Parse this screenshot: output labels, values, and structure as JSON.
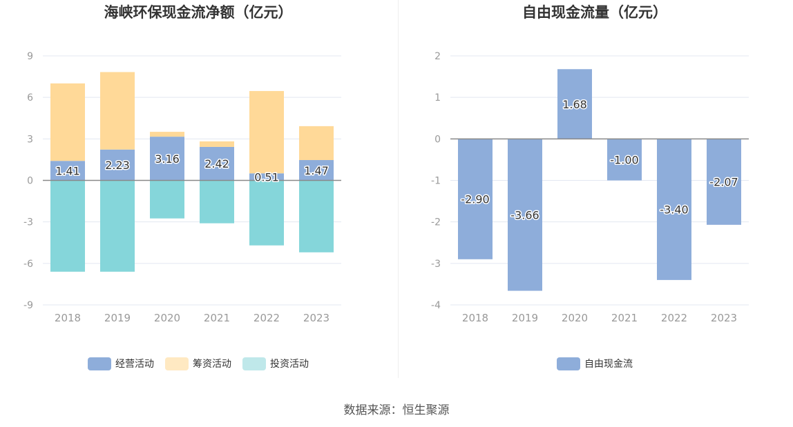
{
  "colors": {
    "operating": "#8eadda",
    "financing": "#ffd998",
    "investing": "#85d6da",
    "free_cf": "#8eadda",
    "grid": "#e3e7f1",
    "zero_line": "#888888",
    "tick_text": "#999999",
    "data_label": "#333333"
  },
  "source": "数据来源：恒生聚源",
  "chart_data": [
    {
      "type": "bar",
      "stacked": true,
      "title": "海峡环保现金流净额（亿元）",
      "categories": [
        "2018",
        "2019",
        "2020",
        "2021",
        "2022",
        "2023"
      ],
      "ylim": [
        -9,
        9
      ],
      "yticks": [
        9,
        6,
        3,
        0,
        -3,
        -6,
        -9
      ],
      "grid": true,
      "legend_position": "bottom",
      "series": [
        {
          "name": "经营活动",
          "color": "#8eadda",
          "values": [
            1.41,
            2.23,
            3.16,
            2.42,
            0.51,
            1.47
          ],
          "labels": [
            "1.41",
            "2.23",
            "3.16",
            "2.42",
            "0.51",
            "1.47"
          ]
        },
        {
          "name": "筹资活动",
          "color": "#ffd998",
          "values": [
            5.6,
            5.6,
            0.35,
            0.4,
            5.95,
            2.45
          ]
        },
        {
          "name": "投资活动",
          "color": "#85d6da",
          "values": [
            -6.6,
            -6.6,
            -2.75,
            -3.1,
            -4.7,
            -5.2
          ]
        }
      ]
    },
    {
      "type": "bar",
      "title": "自由现金流量（亿元）",
      "categories": [
        "2018",
        "2019",
        "2020",
        "2021",
        "2022",
        "2023"
      ],
      "ylim": [
        -4,
        2
      ],
      "yticks": [
        2,
        1,
        0,
        -1,
        -2,
        -3,
        -4
      ],
      "grid": true,
      "legend_position": "bottom",
      "series": [
        {
          "name": "自由现金流",
          "color": "#8eadda",
          "values": [
            -2.9,
            -3.66,
            1.68,
            -1.0,
            -3.4,
            -2.07
          ],
          "labels": [
            "-2.90",
            "-3.66",
            "1.68",
            "-1.00",
            "-3.40",
            "-2.07"
          ]
        }
      ]
    }
  ]
}
